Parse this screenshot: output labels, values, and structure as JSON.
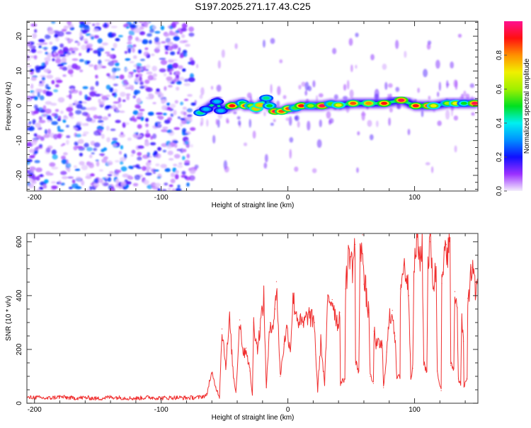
{
  "title": "S197.2025.271.17.43.C25",
  "chart_data": [
    {
      "type": "heatmap",
      "title": "S197.2025.271.17.43.C25",
      "xlabel": "Height of straight line (km)",
      "ylabel": "Frequency (Hz)",
      "xlim": [
        -206,
        150
      ],
      "ylim": [
        -24.5,
        24.3
      ],
      "xticks": [
        -200,
        -100,
        0,
        100
      ],
      "yticks": [
        -20,
        -10,
        0,
        10,
        20
      ],
      "noise_region_x": [
        -206,
        -74
      ],
      "ridge": {
        "description_fields": [
          "x_km",
          "freq_hz",
          "amplitude"
        ],
        "points": [
          [
            -69,
            -2.0,
            0.45
          ],
          [
            -64.5,
            -1.0,
            0.35
          ],
          [
            -56,
            1.2,
            0.35
          ],
          [
            -53,
            -1.4,
            0.35
          ],
          [
            -44,
            0.0,
            0.9
          ],
          [
            -36,
            0.8,
            0.5
          ],
          [
            -33.5,
            0.0,
            0.85
          ],
          [
            -29,
            0.0,
            0.6
          ],
          [
            -25,
            -0.8,
            0.75
          ],
          [
            -22,
            0.2,
            0.75
          ],
          [
            -17,
            2.2,
            0.45
          ],
          [
            -14.5,
            0.0,
            0.5
          ],
          [
            -10,
            -1.6,
            0.95
          ],
          [
            -5,
            -1.6,
            0.85
          ],
          [
            0.5,
            -0.8,
            0.85
          ],
          [
            6,
            -0.6,
            0.55
          ],
          [
            10.6,
            0.0,
            0.9
          ],
          [
            18,
            0.0,
            0.6
          ],
          [
            27,
            0.0,
            0.95
          ],
          [
            34,
            0.5,
            0.55
          ],
          [
            40,
            0.2,
            0.7
          ],
          [
            51.5,
            0.7,
            0.85
          ],
          [
            63.7,
            0.7,
            0.8
          ],
          [
            76,
            0.7,
            0.9
          ],
          [
            89.5,
            1.6,
            0.95
          ],
          [
            101,
            0.0,
            0.9
          ],
          [
            111,
            0.0,
            0.95
          ],
          [
            115,
            0.0,
            0.7
          ],
          [
            126,
            0.7,
            0.6
          ],
          [
            132.5,
            0.7,
            0.7
          ],
          [
            139,
            0.7,
            0.5
          ],
          [
            147.5,
            0.7,
            0.95
          ]
        ]
      },
      "colorbar": {
        "label": "Normalized spectral amplitude",
        "ticks": [
          "0.0",
          "0.2",
          "0.4",
          "0.6",
          "0.8"
        ],
        "range": [
          0,
          1
        ],
        "colors": [
          "#f4eefc",
          "#9b30ff",
          "#1010ff",
          "#0090ff",
          "#00f0f0",
          "#00e020",
          "#a0f000",
          "#f0f000",
          "#ff9000",
          "#ff1010",
          "#ff1090"
        ]
      }
    },
    {
      "type": "line",
      "xlabel": "Height of straight line (km)",
      "ylabel": "SNR (10 * v/v)",
      "xlim": [
        -206,
        150
      ],
      "ylim": [
        0,
        631
      ],
      "xticks": [
        -200,
        -100,
        0,
        100
      ],
      "yticks": [
        0,
        200,
        400,
        600
      ],
      "color": "#f03030",
      "x": [
        -206,
        -200,
        -190,
        -180,
        -170,
        -160,
        -150,
        -140,
        -130,
        -120,
        -110,
        -100,
        -90,
        -80,
        -70,
        -64,
        -62,
        -60,
        -57,
        -54,
        -52,
        -49,
        -46,
        -43,
        -41,
        -38,
        -35,
        -33,
        -30,
        -28,
        -27,
        -24,
        -22,
        -19,
        -17,
        -14,
        -12,
        -10,
        -9,
        -6,
        -3,
        -1,
        2,
        4,
        8,
        12,
        16,
        21,
        22,
        23.5,
        26,
        29,
        31.5,
        35,
        39.5,
        41,
        41.5,
        45,
        45.5,
        48.5,
        51,
        53,
        53.4,
        56,
        57,
        59,
        60,
        61.5,
        62.5,
        64,
        65,
        67.5,
        68,
        70,
        72,
        74.5,
        75.5,
        78,
        80,
        82.5,
        84.5,
        86,
        88.5,
        88.8,
        91.5,
        94,
        95.5,
        97,
        98.6,
        99.5,
        101.7,
        104,
        106,
        107.3,
        109.7,
        110.6,
        112.5,
        115,
        117,
        118,
        121,
        121.5,
        125,
        127,
        128,
        128.6,
        131,
        131.8,
        133.7,
        134.6,
        136.4,
        137.3,
        138.6,
        139,
        141.5,
        142,
        145.5,
        148,
        150
      ],
      "values": [
        20,
        22,
        18,
        24,
        19,
        21,
        17,
        23,
        20,
        18,
        22,
        19,
        21,
        20,
        22,
        30,
        80,
        110,
        60,
        25,
        276,
        140,
        310,
        100,
        40,
        310,
        180,
        205,
        120,
        30,
        300,
        200,
        280,
        390,
        60,
        300,
        290,
        350,
        452,
        100,
        220,
        280,
        200,
        390,
        310,
        290,
        330,
        300,
        180,
        47,
        230,
        70,
        380,
        385,
        290,
        337,
        74,
        90,
        425,
        573,
        505,
        590,
        152,
        120,
        540,
        626,
        442,
        425,
        363,
        337,
        100,
        74,
        268,
        215,
        220,
        215,
        58,
        190,
        310,
        345,
        250,
        92,
        100,
        425,
        513,
        470,
        400,
        100,
        130,
        485,
        610,
        540,
        575,
        150,
        120,
        530,
        600,
        435,
        500,
        120,
        47,
        445,
        590,
        560,
        615,
        140,
        130,
        415,
        355,
        90,
        74,
        310,
        230,
        60,
        90,
        390,
        505,
        410,
        440
      ]
    }
  ]
}
